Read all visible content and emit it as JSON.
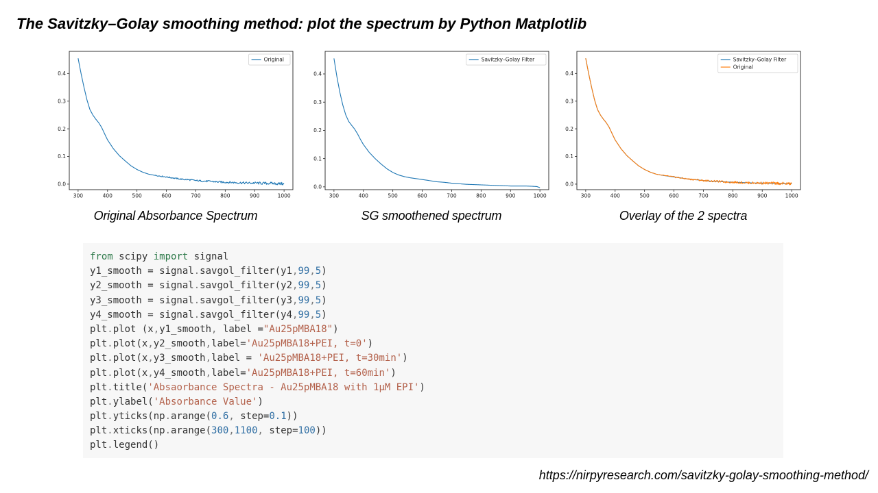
{
  "title": "The Savitzky–Golay smoothing method: plot the spectrum by Python Matplotlib",
  "colors": {
    "blue": "#1f77b4",
    "orange": "#ff7f0e"
  },
  "captions": [
    "Original Absorbance Spectrum",
    "SG smoothened spectrum",
    "Overlay of the 2 spectra"
  ],
  "chart_data": [
    {
      "type": "line",
      "title": "",
      "xlabel": "",
      "ylabel": "",
      "xlim": [
        270,
        1030
      ],
      "ylim": [
        -0.02,
        0.48
      ],
      "xticks": [
        300,
        400,
        500,
        600,
        700,
        800,
        900,
        1000
      ],
      "yticks": [
        0.0,
        0.1,
        0.2,
        0.3,
        0.4
      ],
      "ytick_labels": [
        "0.0",
        "0.1",
        "0.2",
        "0.3",
        "0.4"
      ],
      "grid": false,
      "legend_position": "top-right",
      "series": [
        {
          "name": "Original",
          "color": "#1f77b4",
          "noisy": true,
          "x": [
            300,
            310,
            320,
            330,
            340,
            350,
            360,
            370,
            380,
            390,
            400,
            420,
            440,
            460,
            480,
            500,
            520,
            540,
            560,
            580,
            600,
            625,
            650,
            675,
            700,
            725,
            750,
            775,
            800,
            825,
            850,
            875,
            900,
            925,
            950,
            975,
            1000
          ],
          "values": [
            0.455,
            0.4,
            0.35,
            0.305,
            0.27,
            0.25,
            0.235,
            0.222,
            0.205,
            0.182,
            0.16,
            0.128,
            0.103,
            0.084,
            0.066,
            0.053,
            0.043,
            0.036,
            0.032,
            0.029,
            0.026,
            0.022,
            0.018,
            0.016,
            0.013,
            0.011,
            0.01,
            0.008,
            0.007,
            0.006,
            0.005,
            0.004,
            0.004,
            0.003,
            0.003,
            0.002,
            0.001
          ]
        }
      ]
    },
    {
      "type": "line",
      "title": "",
      "xlabel": "",
      "ylabel": "",
      "xlim": [
        270,
        1030
      ],
      "ylim": [
        -0.01,
        0.48
      ],
      "xticks": [
        300,
        400,
        500,
        600,
        700,
        800,
        900,
        1000
      ],
      "yticks": [
        0.0,
        0.1,
        0.2,
        0.3,
        0.4
      ],
      "ytick_labels": [
        "0.0",
        "0.1",
        "0.2",
        "0.3",
        "0.4"
      ],
      "grid": false,
      "legend_position": "top-right",
      "series": [
        {
          "name": "Savitzky–Golay Filter",
          "color": "#1f77b4",
          "noisy": false,
          "x": [
            300,
            310,
            320,
            330,
            340,
            350,
            360,
            370,
            380,
            390,
            400,
            420,
            440,
            460,
            480,
            500,
            520,
            540,
            560,
            580,
            600,
            625,
            650,
            675,
            700,
            725,
            750,
            775,
            800,
            825,
            850,
            875,
            900,
            925,
            950,
            975,
            990,
            1000
          ],
          "values": [
            0.455,
            0.39,
            0.335,
            0.29,
            0.255,
            0.232,
            0.218,
            0.205,
            0.188,
            0.168,
            0.15,
            0.122,
            0.1,
            0.081,
            0.064,
            0.051,
            0.042,
            0.036,
            0.032,
            0.029,
            0.026,
            0.022,
            0.018,
            0.016,
            0.013,
            0.011,
            0.009,
            0.008,
            0.007,
            0.006,
            0.005,
            0.004,
            0.003,
            0.003,
            0.003,
            0.002,
            0.001,
            -0.003
          ]
        }
      ]
    },
    {
      "type": "line",
      "title": "",
      "xlabel": "",
      "ylabel": "",
      "xlim": [
        270,
        1030
      ],
      "ylim": [
        -0.02,
        0.48
      ],
      "xticks": [
        300,
        400,
        500,
        600,
        700,
        800,
        900,
        1000
      ],
      "yticks": [
        0.0,
        0.1,
        0.2,
        0.3,
        0.4
      ],
      "ytick_labels": [
        "0.0",
        "0.1",
        "0.2",
        "0.3",
        "0.4"
      ],
      "grid": false,
      "legend_position": "top-right",
      "series": [
        {
          "name": "Savitzky–Golay Filter",
          "color": "#1f77b4",
          "noisy": false,
          "x": [
            300,
            310,
            320,
            330,
            340,
            350,
            360,
            370,
            380,
            390,
            400,
            420,
            440,
            460,
            480,
            500,
            520,
            540,
            560,
            580,
            600,
            625,
            650,
            675,
            700,
            725,
            750,
            775,
            800,
            825,
            850,
            875,
            900,
            925,
            950,
            975,
            1000
          ],
          "values": [
            0.455,
            0.4,
            0.35,
            0.305,
            0.27,
            0.25,
            0.235,
            0.222,
            0.205,
            0.182,
            0.16,
            0.128,
            0.103,
            0.084,
            0.066,
            0.053,
            0.043,
            0.036,
            0.032,
            0.029,
            0.026,
            0.022,
            0.018,
            0.016,
            0.013,
            0.011,
            0.01,
            0.008,
            0.007,
            0.006,
            0.005,
            0.004,
            0.004,
            0.003,
            0.003,
            0.002,
            0.001
          ]
        },
        {
          "name": "Original",
          "color": "#ff7f0e",
          "noisy": true,
          "x": [
            300,
            310,
            320,
            330,
            340,
            350,
            360,
            370,
            380,
            390,
            400,
            420,
            440,
            460,
            480,
            500,
            520,
            540,
            560,
            580,
            600,
            625,
            650,
            675,
            700,
            725,
            750,
            775,
            800,
            825,
            850,
            875,
            900,
            925,
            950,
            975,
            1000
          ],
          "values": [
            0.455,
            0.4,
            0.35,
            0.305,
            0.27,
            0.25,
            0.235,
            0.222,
            0.205,
            0.182,
            0.16,
            0.128,
            0.103,
            0.084,
            0.066,
            0.053,
            0.043,
            0.036,
            0.032,
            0.029,
            0.026,
            0.022,
            0.018,
            0.016,
            0.013,
            0.011,
            0.01,
            0.008,
            0.007,
            0.006,
            0.005,
            0.004,
            0.004,
            0.003,
            0.003,
            0.002,
            0.001
          ]
        }
      ]
    }
  ],
  "code": {
    "lines": [
      [
        [
          "kw",
          "from"
        ],
        [
          "p",
          " scipy "
        ],
        [
          "kw",
          "import"
        ],
        [
          "p",
          " signal"
        ]
      ],
      [
        [
          "p",
          "y1_smooth = signal"
        ],
        [
          "o",
          "."
        ],
        [
          "p",
          "savgol_filter(y1"
        ],
        [
          "o",
          ","
        ],
        [
          "n",
          "99"
        ],
        [
          "o",
          ","
        ],
        [
          "n",
          "5"
        ],
        [
          "p",
          ")"
        ]
      ],
      [
        [
          "p",
          "y2_smooth = signal"
        ],
        [
          "o",
          "."
        ],
        [
          "p",
          "savgol_filter(y2"
        ],
        [
          "o",
          ","
        ],
        [
          "n",
          "99"
        ],
        [
          "o",
          ","
        ],
        [
          "n",
          "5"
        ],
        [
          "p",
          ")"
        ]
      ],
      [
        [
          "p",
          "y3_smooth = signal"
        ],
        [
          "o",
          "."
        ],
        [
          "p",
          "savgol_filter(y3"
        ],
        [
          "o",
          ","
        ],
        [
          "n",
          "99"
        ],
        [
          "o",
          ","
        ],
        [
          "n",
          "5"
        ],
        [
          "p",
          ")"
        ]
      ],
      [
        [
          "p",
          "y4_smooth = signal"
        ],
        [
          "o",
          "."
        ],
        [
          "p",
          "savgol_filter(y4"
        ],
        [
          "o",
          ","
        ],
        [
          "n",
          "99"
        ],
        [
          "o",
          ","
        ],
        [
          "n",
          "5"
        ],
        [
          "p",
          ")"
        ]
      ],
      [
        [
          "p",
          "plt"
        ],
        [
          "o",
          "."
        ],
        [
          "p",
          "plot (x"
        ],
        [
          "o",
          ","
        ],
        [
          "p",
          "y1_smooth"
        ],
        [
          "o",
          ","
        ],
        [
          "p",
          " label ="
        ],
        [
          "s",
          "\"Au25pMBA18\""
        ],
        [
          "p",
          ")"
        ]
      ],
      [
        [
          "p",
          "plt"
        ],
        [
          "o",
          "."
        ],
        [
          "p",
          "plot(x"
        ],
        [
          "o",
          ","
        ],
        [
          "p",
          "y2_smooth"
        ],
        [
          "o",
          ","
        ],
        [
          "p",
          "label="
        ],
        [
          "s",
          "'Au25pMBA18+PEI, t=0'"
        ],
        [
          "p",
          ")"
        ]
      ],
      [
        [
          "p",
          "plt"
        ],
        [
          "o",
          "."
        ],
        [
          "p",
          "plot(x"
        ],
        [
          "o",
          ","
        ],
        [
          "p",
          "y3_smooth"
        ],
        [
          "o",
          ","
        ],
        [
          "p",
          "label = "
        ],
        [
          "s",
          "'Au25pMBA18+PEI, t=30min'"
        ],
        [
          "p",
          ")"
        ]
      ],
      [
        [
          "p",
          "plt"
        ],
        [
          "o",
          "."
        ],
        [
          "p",
          "plot(x"
        ],
        [
          "o",
          ","
        ],
        [
          "p",
          "y4_smooth"
        ],
        [
          "o",
          ","
        ],
        [
          "p",
          "label="
        ],
        [
          "s",
          "'Au25pMBA18+PEI, t=60min'"
        ],
        [
          "p",
          ")"
        ]
      ],
      [
        [
          "p",
          "plt"
        ],
        [
          "o",
          "."
        ],
        [
          "p",
          "title("
        ],
        [
          "s",
          "'Absaorbance Spectra - Au25pMBA18 with 1μM EPI'"
        ],
        [
          "p",
          ")"
        ]
      ],
      [
        [
          "p",
          "plt"
        ],
        [
          "o",
          "."
        ],
        [
          "p",
          "ylabel("
        ],
        [
          "s",
          "'Absorbance Value'"
        ],
        [
          "p",
          ")"
        ]
      ],
      [
        [
          "p",
          "plt"
        ],
        [
          "o",
          "."
        ],
        [
          "p",
          "yticks(np"
        ],
        [
          "o",
          "."
        ],
        [
          "p",
          "arange("
        ],
        [
          "n",
          "0.6"
        ],
        [
          "o",
          ","
        ],
        [
          "p",
          " step="
        ],
        [
          "n",
          "0.1"
        ],
        [
          "p",
          "))"
        ]
      ],
      [
        [
          "p",
          "plt"
        ],
        [
          "o",
          "."
        ],
        [
          "p",
          "xticks(np"
        ],
        [
          "o",
          "."
        ],
        [
          "p",
          "arange("
        ],
        [
          "n",
          "300"
        ],
        [
          "o",
          ","
        ],
        [
          "n",
          "1100"
        ],
        [
          "o",
          ","
        ],
        [
          "p",
          " step="
        ],
        [
          "n",
          "100"
        ],
        [
          "p",
          "))"
        ]
      ],
      [
        [
          "p",
          "plt"
        ],
        [
          "o",
          "."
        ],
        [
          "p",
          "legend()"
        ]
      ]
    ]
  },
  "source_url": "https://nirpyresearch.com/savitzky-golay-smoothing-method/"
}
